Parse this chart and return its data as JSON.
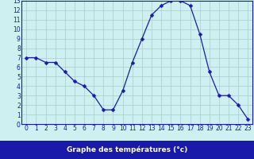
{
  "x": [
    0,
    1,
    2,
    3,
    4,
    5,
    6,
    7,
    8,
    9,
    10,
    11,
    12,
    13,
    14,
    15,
    16,
    17,
    18,
    19,
    20,
    21,
    22,
    23
  ],
  "y": [
    7,
    7,
    6.5,
    6.5,
    5.5,
    4.5,
    4,
    3,
    1.5,
    1.5,
    3.5,
    6.5,
    9,
    11.5,
    12.5,
    13,
    13,
    12.5,
    9.5,
    5.5,
    3,
    3,
    2,
    0.5
  ],
  "line_color": "#1a1aaa",
  "marker": "D",
  "marker_size": 2.5,
  "bg_color": "#cff0f0",
  "grid_color": "#aacccc",
  "tick_label_color": "#1a1aaa",
  "xlabel": "Graphe des températures (°c)",
  "xlim": [
    -0.5,
    23.5
  ],
  "ylim": [
    0,
    13
  ],
  "yticks": [
    0,
    1,
    2,
    3,
    4,
    5,
    6,
    7,
    8,
    9,
    10,
    11,
    12,
    13
  ],
  "xticks": [
    0,
    1,
    2,
    3,
    4,
    5,
    6,
    7,
    8,
    9,
    10,
    11,
    12,
    13,
    14,
    15,
    16,
    17,
    18,
    19,
    20,
    21,
    22,
    23
  ],
  "border_color": "#1a1aaa",
  "bottom_bar_color": "#1a1aaa",
  "bottom_bar_text_color": "#ffffff",
  "tick_fontsize": 5.5,
  "xlabel_fontsize": 6.5
}
